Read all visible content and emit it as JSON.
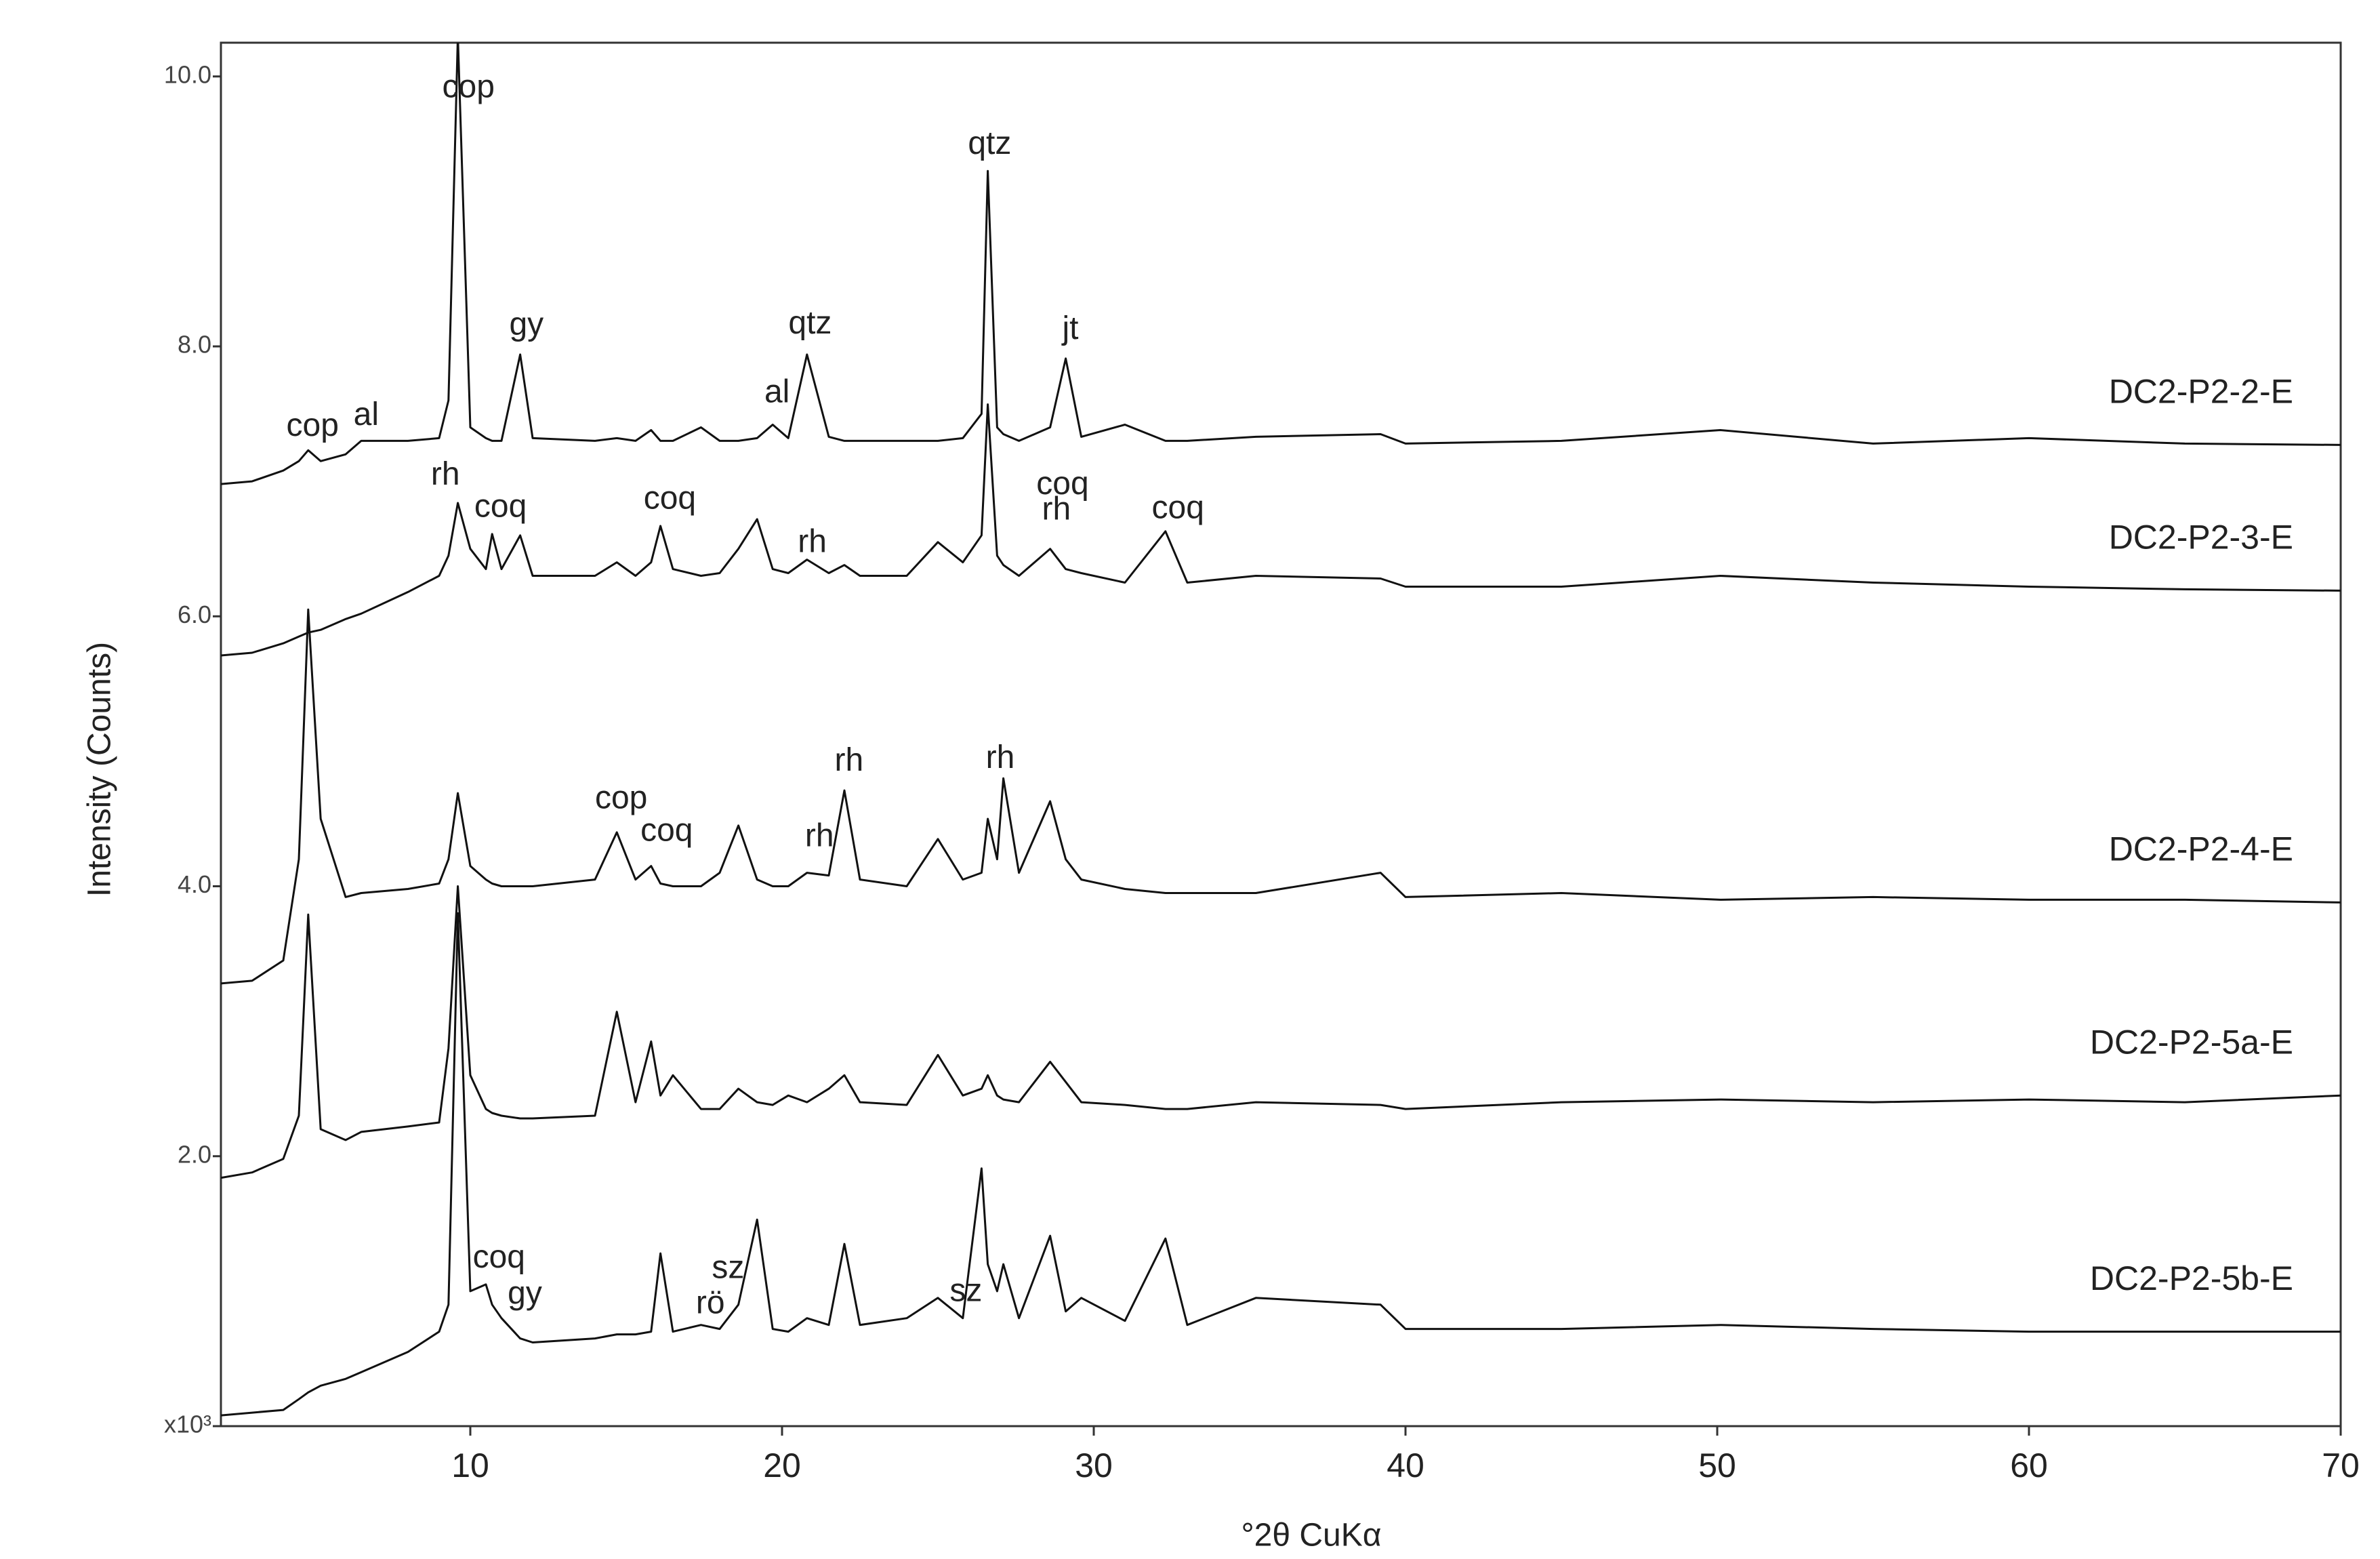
{
  "chart_data": {
    "type": "line",
    "x_label": "°2θ CuKα",
    "y_label": "Intensity (Counts)",
    "xlim": [
      2,
      70
    ],
    "xticks": [
      10,
      20,
      30,
      40,
      50,
      60,
      70
    ],
    "ylim": [
      0,
      10.25
    ],
    "yticks": [
      {
        "value": 0,
        "label": "x10³"
      },
      {
        "value": 2,
        "label": "2.0"
      },
      {
        "value": 4,
        "label": "4.0"
      },
      {
        "value": 6,
        "label": "6.0"
      },
      {
        "value": 8,
        "label": "8.0"
      },
      {
        "value": 10,
        "label": "10.0"
      }
    ],
    "color": "#111111",
    "x": [
      2,
      3,
      4,
      4.5,
      4.8,
      5.2,
      6,
      6.5,
      8,
      9,
      9.3,
      9.6,
      10,
      10.5,
      10.7,
      11,
      11.6,
      12,
      14,
      14.7,
      15.3,
      15.8,
      16.1,
      16.5,
      17.4,
      18,
      18.6,
      19.2,
      19.7,
      20.2,
      20.8,
      21.5,
      22,
      22.5,
      24,
      25,
      25.8,
      26.4,
      26.6,
      26.9,
      27.1,
      27.6,
      28.6,
      29.1,
      29.6,
      31,
      32.3,
      33,
      35.2,
      39.2,
      40,
      45,
      50.1,
      55,
      60,
      65,
      70
    ],
    "series": [
      {
        "name": "DC2-P2-2-E",
        "values": [
          6.98,
          7.0,
          7.08,
          7.15,
          7.23,
          7.15,
          7.2,
          7.3,
          7.3,
          7.32,
          7.6,
          10.3,
          7.4,
          7.32,
          7.3,
          7.3,
          7.94,
          7.32,
          7.3,
          7.32,
          7.3,
          7.38,
          7.3,
          7.3,
          7.4,
          7.3,
          7.3,
          7.32,
          7.42,
          7.32,
          7.94,
          7.33,
          7.3,
          7.3,
          7.3,
          7.3,
          7.32,
          7.5,
          9.3,
          7.4,
          7.35,
          7.3,
          7.4,
          7.91,
          7.33,
          7.42,
          7.3,
          7.3,
          7.33,
          7.35,
          7.28,
          7.3,
          7.38,
          7.28,
          7.32,
          7.28,
          7.27
        ]
      },
      {
        "name": "DC2-P2-3-E",
        "values": [
          5.71,
          5.73,
          5.8,
          5.85,
          5.88,
          5.9,
          5.98,
          6.02,
          6.18,
          6.3,
          6.45,
          6.84,
          6.5,
          6.35,
          6.61,
          6.35,
          6.6,
          6.3,
          6.3,
          6.4,
          6.3,
          6.4,
          6.67,
          6.35,
          6.3,
          6.32,
          6.5,
          6.72,
          6.35,
          6.32,
          6.42,
          6.32,
          6.38,
          6.3,
          6.3,
          6.55,
          6.4,
          6.6,
          7.57,
          6.45,
          6.38,
          6.3,
          6.5,
          6.35,
          6.32,
          6.25,
          6.63,
          6.25,
          6.3,
          6.28,
          6.22,
          6.22,
          6.3,
          6.25,
          6.22,
          6.2,
          6.19
        ]
      },
      {
        "name": "DC2-P2-4-E",
        "values": [
          3.28,
          3.3,
          3.45,
          4.2,
          6.05,
          4.5,
          3.92,
          3.95,
          3.98,
          4.02,
          4.2,
          4.69,
          4.15,
          4.05,
          4.02,
          4.0,
          4.0,
          4.0,
          4.05,
          4.4,
          4.05,
          4.15,
          4.02,
          4.0,
          4.0,
          4.1,
          4.45,
          4.05,
          4.0,
          4.0,
          4.1,
          4.08,
          4.71,
          4.05,
          4.0,
          4.35,
          4.05,
          4.1,
          4.5,
          4.2,
          4.8,
          4.1,
          4.63,
          4.2,
          4.05,
          3.98,
          3.95,
          3.95,
          3.95,
          4.1,
          3.92,
          3.95,
          3.9,
          3.92,
          3.9,
          3.9,
          3.88
        ]
      },
      {
        "name": "DC2-P2-5a-E",
        "values": [
          1.84,
          1.88,
          1.98,
          2.3,
          3.79,
          2.2,
          2.12,
          2.18,
          2.22,
          2.25,
          2.8,
          4.0,
          2.6,
          2.35,
          2.32,
          2.3,
          2.28,
          2.28,
          2.3,
          3.07,
          2.4,
          2.85,
          2.45,
          2.6,
          2.35,
          2.35,
          2.5,
          2.4,
          2.38,
          2.45,
          2.4,
          2.5,
          2.6,
          2.4,
          2.38,
          2.75,
          2.45,
          2.5,
          2.6,
          2.45,
          2.42,
          2.4,
          2.7,
          2.55,
          2.4,
          2.38,
          2.35,
          2.35,
          2.4,
          2.38,
          2.35,
          2.4,
          2.42,
          2.4,
          2.42,
          2.4,
          2.45
        ]
      },
      {
        "name": "DC2-P2-5b-E",
        "values": [
          0.08,
          0.1,
          0.12,
          0.2,
          0.25,
          0.3,
          0.35,
          0.4,
          0.55,
          0.7,
          0.9,
          3.8,
          1.0,
          1.05,
          0.9,
          0.8,
          0.65,
          0.62,
          0.65,
          0.68,
          0.68,
          0.7,
          1.28,
          0.7,
          0.75,
          0.72,
          0.9,
          1.53,
          0.72,
          0.7,
          0.8,
          0.75,
          1.35,
          0.75,
          0.8,
          0.95,
          0.8,
          1.91,
          1.2,
          1.0,
          1.2,
          0.8,
          1.41,
          0.85,
          0.95,
          0.78,
          1.39,
          0.75,
          0.95,
          0.9,
          0.72,
          0.72,
          0.75,
          0.72,
          0.7,
          0.7,
          0.7
        ]
      }
    ],
    "annotations": [
      {
        "text": "cop",
        "x": 9.94,
        "y": 9.91
      },
      {
        "text": "qtz",
        "x": 26.66,
        "y": 9.49
      },
      {
        "text": "gy",
        "x": 11.8,
        "y": 8.15
      },
      {
        "text": "qtz",
        "x": 20.9,
        "y": 8.16
      },
      {
        "text": "jt",
        "x": 29.25,
        "y": 8.12
      },
      {
        "text": "al",
        "x": 19.84,
        "y": 7.65
      },
      {
        "text": "cop",
        "x": 4.94,
        "y": 7.4
      },
      {
        "text": "al",
        "x": 6.66,
        "y": 7.48
      },
      {
        "text": "rh",
        "x": 9.2,
        "y": 7.04
      },
      {
        "text": "coq",
        "x": 10.97,
        "y": 6.8
      },
      {
        "text": "coq",
        "x": 16.4,
        "y": 6.86
      },
      {
        "text": "coq",
        "x": 29.0,
        "y": 6.97
      },
      {
        "text": "rh",
        "x": 28.8,
        "y": 6.78
      },
      {
        "text": "coq",
        "x": 32.7,
        "y": 6.79
      },
      {
        "text": "rh",
        "x": 20.97,
        "y": 6.54
      },
      {
        "text": "rh",
        "x": 22.15,
        "y": 4.92
      },
      {
        "text": "rh",
        "x": 27.0,
        "y": 4.94
      },
      {
        "text": "cop",
        "x": 14.84,
        "y": 4.64
      },
      {
        "text": "coq",
        "x": 16.3,
        "y": 4.4
      },
      {
        "text": "rh",
        "x": 21.2,
        "y": 4.36
      },
      {
        "text": "coq",
        "x": 10.92,
        "y": 1.24
      },
      {
        "text": "gy",
        "x": 11.75,
        "y": 0.97
      },
      {
        "text": "sz",
        "x": 18.27,
        "y": 1.16
      },
      {
        "text": "rö",
        "x": 17.7,
        "y": 0.9
      },
      {
        "text": "sz",
        "x": 25.9,
        "y": 0.99
      }
    ]
  }
}
